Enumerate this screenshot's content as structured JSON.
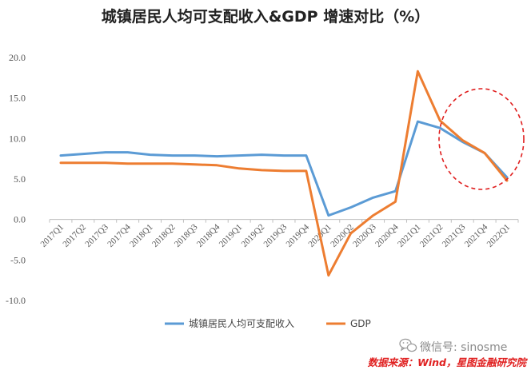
{
  "chart_data": {
    "type": "line",
    "title": "城镇居民人均可支配收入&GDP 增速对比（%）",
    "categories": [
      "2017Q1",
      "2017Q2",
      "2017Q3",
      "2017Q4",
      "2018Q1",
      "2018Q2",
      "2018Q3",
      "2018Q4",
      "2019Q1",
      "2019Q2",
      "2019Q3",
      "2019Q4",
      "2020Q1",
      "2020Q2",
      "2020Q3",
      "2020Q4",
      "2021Q1",
      "2021Q2",
      "2021Q3",
      "2021Q4",
      "2022Q1"
    ],
    "series": [
      {
        "name": "城镇居民人均可支配收入",
        "color": "#5b9bd5",
        "values": [
          7.9,
          8.1,
          8.3,
          8.3,
          8.0,
          7.9,
          7.9,
          7.8,
          7.9,
          8.0,
          7.9,
          7.9,
          0.5,
          1.5,
          2.7,
          3.5,
          12.1,
          11.3,
          9.6,
          8.2,
          5.2
        ]
      },
      {
        "name": "GDP",
        "color": "#ed7d31",
        "values": [
          7.0,
          7.0,
          7.0,
          6.9,
          6.9,
          6.9,
          6.8,
          6.7,
          6.3,
          6.1,
          6.0,
          6.0,
          -6.9,
          -1.7,
          0.5,
          2.2,
          18.3,
          12.2,
          9.8,
          8.2,
          4.8
        ]
      }
    ],
    "ylim": [
      -10,
      20
    ],
    "yticks": [
      "-10.0",
      "-5.0",
      "0.0",
      "5.0",
      "10.0",
      "15.0",
      "20.0"
    ],
    "grid": false,
    "legend": "bottom",
    "annotation": {
      "type": "dashed-ellipse",
      "color": "#e02020",
      "covers": [
        "2021Q3",
        "2021Q4",
        "2022Q1"
      ]
    }
  },
  "watermark": {
    "icon": "wechat-icon",
    "text": "微信号: sinosme"
  },
  "source": "数据来源：Wind，星图金融研究院"
}
